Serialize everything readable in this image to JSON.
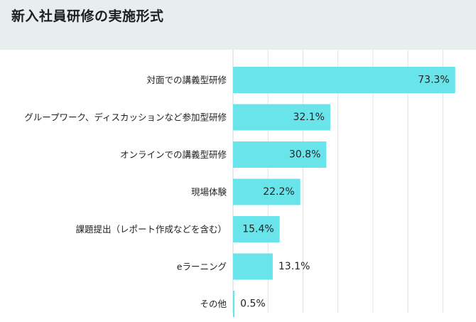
{
  "chart_data": {
    "type": "bar",
    "orientation": "horizontal",
    "title": "新入社員研修の実施形式",
    "categories": [
      "対面での講義型研修",
      "グループワーク、ディスカッションなど参加型研修",
      "オンラインでの講義型研修",
      "現場体験",
      "課題提出（レポート作成などを含む）",
      "eラーニング",
      "その他"
    ],
    "values": [
      73.3,
      32.1,
      30.8,
      22.2,
      15.4,
      13.1,
      0.5
    ],
    "value_labels": [
      "73.3%",
      "32.1%",
      "30.8%",
      "22.2%",
      "15.4%",
      "13.1%",
      "0.5%"
    ],
    "xlim": [
      0,
      75
    ],
    "grid": true,
    "bar_color": "#6ae4eb"
  }
}
